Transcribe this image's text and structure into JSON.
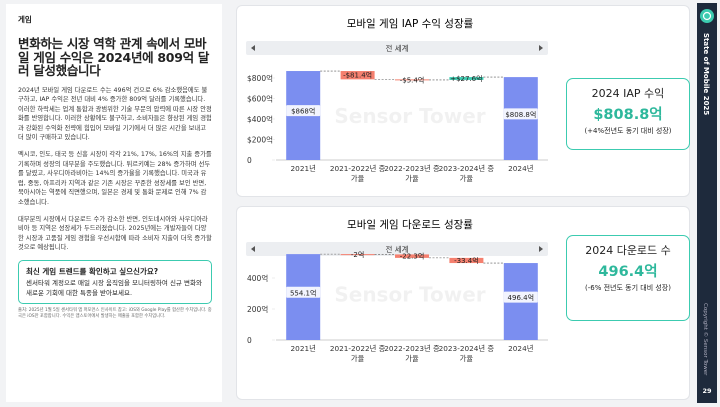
{
  "section": "게임",
  "heading": "변화하는 시장 역학 관계 속에서 모바일 게임 수익은 2024년에 809억 달러 달성했습니다",
  "paragraphs": [
    "2024년 모바일 게임 다운로드 수는 496억 건으로 6% 감소했음에도 불구하고, IAP 수익은 전년 대비 4% 증가한 809억 달러를 기록했습니다. 이러한 하락세는 업계 통합과 광범위한 기술 부문의 압력에 따른 시장 안정화를 반영합니다. 이러한 상황에도 불구하고, 소비자들은 향상된 게임 경험과 강화된 수익화 전략에 힘입어 모바일 기기에서 더 많은 시간을 보내고 더 많이 구매하고 있습니다.",
    "멕시코, 인도, 태국 등 신흥 시장이 각각 21%, 17%, 16%의 지출 증가를 기록하며 성장의 대부분을 주도했습니다. 튀르키예는 28% 증가하며 선두를 달렸고, 사우디아라비아는 14%의 증가율을 기록했습니다. 미국과 유럽, 중동, 아프리카 지역과 같은 기존 시장은 꾸준한 성장세를 보인 반면, 북아시아는 역풍에 직면했으며, 일본은 경제 및 통화 문제로 인해 7% 감소했습니다.",
    "대부분의 시장에서 다운로드 수가 감소한 반면, 인도네시아와 사우디아라비아 등 지역은 성장세가 두드러졌습니다. 2025년에는 개발자들이 다양한 시장과 고품질 게임 경험을 우선시함에 따라 소비자 지출이 더욱 증가할 것으로 예상됩니다."
  ],
  "callout": {
    "title": "최신 게임 트렌드를 확인하고 싶으신가요?",
    "text": "센서타워 계정으로 매일 시장 움직임을 모니터링하여 신규 변화와 새로운 기회에 대한 특종을 받아보세요."
  },
  "footnote": "출처: 2025년 1월 5일 센서타워 앱 퍼포먼스 인사이트 참고: iOS와 Google Play를 합산한 수치입니다. 중국은 iOS만 포함합니다. 수익은 앱스토어에서 발생하는 매출을 포함한 수치입니다.",
  "sidebar": {
    "title": "State of Mobile 2025",
    "copyright": "Copyright © Sensor Tower",
    "page": "29"
  },
  "watermark": "Sensor Tower",
  "chart_data": [
    {
      "type": "waterfall",
      "title": "모바일 게임 IAP 수익 성장률",
      "filter": "전 세계",
      "categories": [
        "2021년",
        "2021-2022년 증가율",
        "2022-2023년 증가율",
        "2023-2024년 증가율",
        "2024년"
      ],
      "values": [
        868,
        -81.4,
        -5.4,
        27.6,
        808.8
      ],
      "value_labels": [
        "$868억",
        "-$81.4억",
        "-$5.4억",
        "+$27.6억",
        "$808.8억"
      ],
      "color": "#7b8ef0",
      "increase_color": "#3ccbb0",
      "decrease_color": "#f5806f",
      "ylim": [
        0,
        880
      ],
      "yticks": [
        0,
        {
          "value": 200,
          "label": "$200억"
        },
        {
          "value": 400,
          "label": "$400억"
        },
        {
          "value": 600,
          "label": "$600억"
        },
        {
          "value": 800,
          "label": "$800억"
        }
      ],
      "summary": {
        "title": "2024 IAP 수익",
        "value": "$808.8억",
        "note": "(+4%전년도 동기 대비 성장)"
      }
    },
    {
      "type": "waterfall",
      "title": "모바일 게임 다운로드 성장률",
      "filter": "전 세계",
      "categories": [
        "2021년",
        "2021-2022년 증가율",
        "2022-2023년 증가율",
        "2023-2024년 증가율",
        "2024년"
      ],
      "values": [
        554.1,
        -2,
        -22.3,
        -33.4,
        496.4
      ],
      "value_labels": [
        "554.1억",
        "-2억",
        "-22.3억",
        "-33.4억",
        "496.4억"
      ],
      "color": "#7b8ef0",
      "increase_color": "#3ccbb0",
      "decrease_color": "#f5806f",
      "ylim": [
        0,
        600
      ],
      "yticks": [
        0,
        {
          "value": 200,
          "label": "200억"
        },
        {
          "value": 400,
          "label": "400억"
        }
      ],
      "summary": {
        "title": "2024 다운로드 수",
        "value": "496.4억",
        "note": "(-6% 전년도 동기 대비 성장)"
      }
    }
  ]
}
